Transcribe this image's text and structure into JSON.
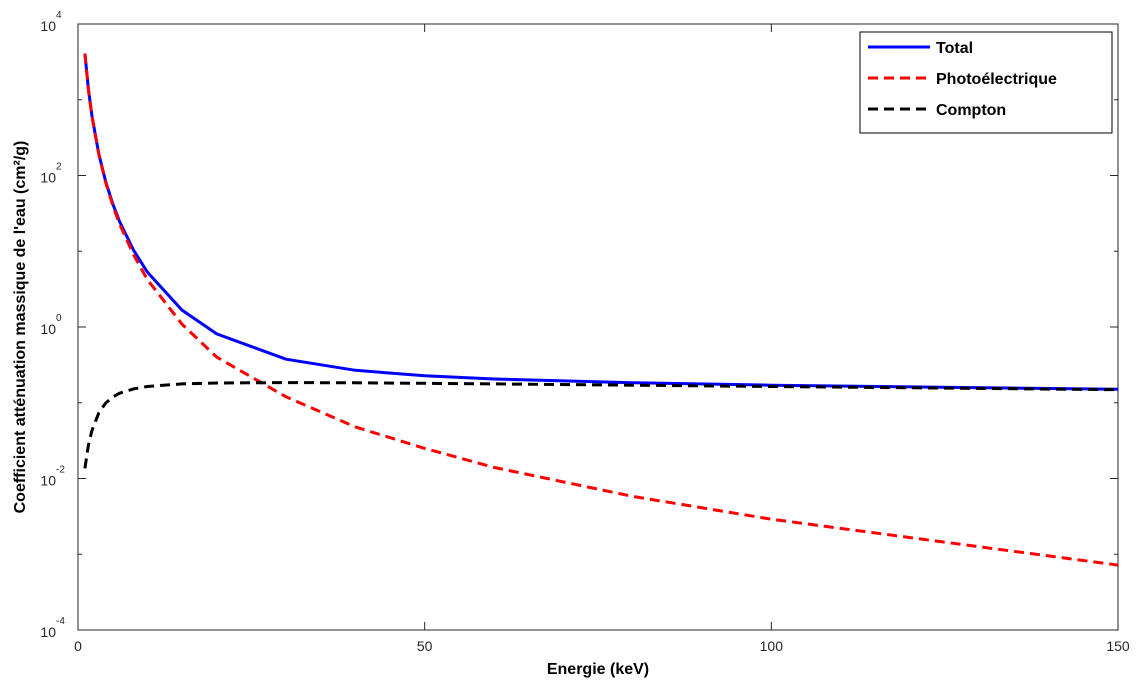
{
  "chart_data": {
    "type": "line",
    "title": "",
    "xlabel": "Energie (keV)",
    "ylabel": "Coefficient atténuation massique de l'eau (cm²/g)",
    "xlim": [
      0,
      150
    ],
    "ylim": [
      0.0001,
      10000
    ],
    "yscale": "log",
    "grid": false,
    "legend_position": "top-right",
    "x_ticks": [
      {
        "value": 0,
        "label": "0"
      },
      {
        "value": 50,
        "label": "50"
      },
      {
        "value": 100,
        "label": "100"
      },
      {
        "value": 150,
        "label": "150"
      }
    ],
    "y_ticks": [
      {
        "value": 10000,
        "base": "10",
        "exp": "4"
      },
      {
        "value": 100,
        "base": "10",
        "exp": "2"
      },
      {
        "value": 1,
        "base": "10",
        "exp": "0"
      },
      {
        "value": 0.01,
        "base": "10",
        "exp": "-2"
      },
      {
        "value": 0.0001,
        "base": "10",
        "exp": "-4"
      }
    ],
    "series": [
      {
        "name": "Total",
        "color": "#0000ff",
        "style": "solid",
        "x": [
          1,
          1.5,
          2,
          3,
          4,
          5,
          6,
          8,
          10,
          15,
          20,
          30,
          40,
          50,
          60,
          80,
          100,
          150
        ],
        "y": [
          4078,
          1376,
          617.3,
          192.9,
          82.78,
          42.58,
          24.64,
          10.37,
          5.329,
          1.673,
          0.8096,
          0.3756,
          0.2683,
          0.2269,
          0.2059,
          0.1837,
          0.1707,
          0.1505
        ]
      },
      {
        "name": "Photoélectrique",
        "color": "#ff0000",
        "style": "dashed",
        "x": [
          1,
          1.5,
          2,
          3,
          4,
          5,
          6,
          8,
          10,
          15,
          20,
          30,
          40,
          50,
          60,
          80,
          100,
          150
        ],
        "y": [
          4065,
          1372,
          613.8,
          190.2,
          80.44,
          40.6,
          22.84,
          9.05,
          4.24,
          1.09,
          0.4,
          0.12,
          0.048,
          0.025,
          0.014,
          0.0058,
          0.0029,
          0.00072
        ]
      },
      {
        "name": "Compton",
        "color": "#000000",
        "style": "dashed",
        "x": [
          1,
          1.5,
          2,
          3,
          4,
          5,
          6,
          8,
          10,
          15,
          20,
          30,
          40,
          50,
          60,
          80,
          100,
          150
        ],
        "y": [
          0.0136,
          0.0274,
          0.0429,
          0.0735,
          0.0992,
          0.1188,
          0.1335,
          0.1524,
          0.1637,
          0.1772,
          0.1823,
          0.1847,
          0.1835,
          0.1807,
          0.1773,
          0.1704,
          0.1637,
          0.1488
        ]
      }
    ]
  }
}
